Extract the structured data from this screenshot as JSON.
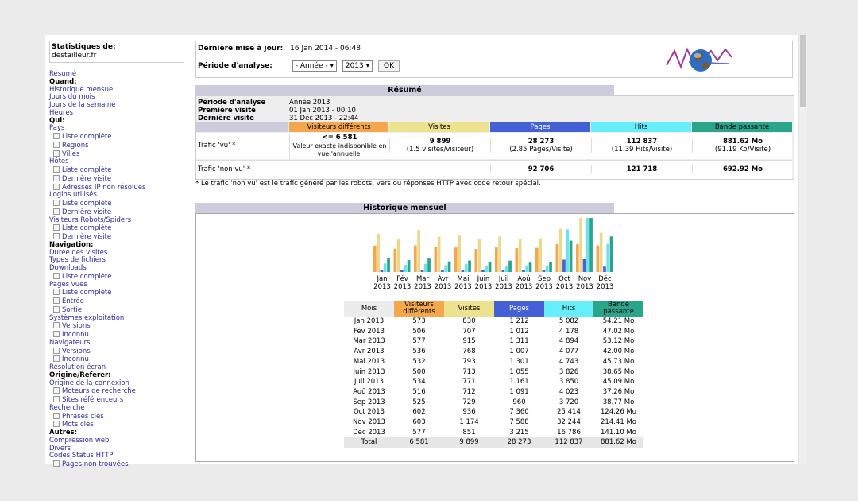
{
  "sidebar": {
    "stat_title": "Statistiques de:",
    "site": "destailleur.fr",
    "items": [
      {
        "t": "link",
        "label": "Résumé"
      },
      {
        "t": "head",
        "label": "Quand:"
      },
      {
        "t": "link",
        "label": "Historique mensuel"
      },
      {
        "t": "link",
        "label": "Jours du mois"
      },
      {
        "t": "link",
        "label": "Jours de la semaine"
      },
      {
        "t": "link",
        "label": "Heures"
      },
      {
        "t": "head",
        "label": "Qui:"
      },
      {
        "t": "link",
        "label": "Pays"
      },
      {
        "t": "sub",
        "label": "Liste complète"
      },
      {
        "t": "sub",
        "label": "Regions"
      },
      {
        "t": "sub",
        "label": "Villes"
      },
      {
        "t": "link",
        "label": "Hôtes"
      },
      {
        "t": "sub",
        "label": "Liste complète"
      },
      {
        "t": "sub",
        "label": "Dernière visite"
      },
      {
        "t": "sub",
        "label": "Adresses IP non résolues"
      },
      {
        "t": "link",
        "label": "Logins utilisés"
      },
      {
        "t": "sub",
        "label": "Liste complète"
      },
      {
        "t": "sub",
        "label": "Dernière visite"
      },
      {
        "t": "link",
        "label": "Visiteurs Robots/Spiders"
      },
      {
        "t": "sub",
        "label": "Liste complète"
      },
      {
        "t": "sub",
        "label": "Dernière visite"
      },
      {
        "t": "head",
        "label": "Navigation:"
      },
      {
        "t": "link",
        "label": "Durée des visites"
      },
      {
        "t": "link",
        "label": "Types de fichiers"
      },
      {
        "t": "link",
        "label": "Downloads"
      },
      {
        "t": "sub",
        "label": "Liste complète"
      },
      {
        "t": "link",
        "label": "Pages vues"
      },
      {
        "t": "sub",
        "label": "Liste complète"
      },
      {
        "t": "sub",
        "label": "Entrée"
      },
      {
        "t": "sub",
        "label": "Sortie"
      },
      {
        "t": "link",
        "label": "Systèmes exploitation"
      },
      {
        "t": "sub",
        "label": "Versions"
      },
      {
        "t": "sub",
        "label": "Inconnu"
      },
      {
        "t": "link",
        "label": "Navigateurs"
      },
      {
        "t": "sub",
        "label": "Versions"
      },
      {
        "t": "sub",
        "label": "Inconnu"
      },
      {
        "t": "link",
        "label": "Résolution écran"
      },
      {
        "t": "head",
        "label": "Origine/Referer:"
      },
      {
        "t": "link",
        "label": "Origine de la connexion"
      },
      {
        "t": "sub",
        "label": "Moteurs de recherche"
      },
      {
        "t": "sub",
        "label": "Sites référenceurs"
      },
      {
        "t": "link",
        "label": "Recherche"
      },
      {
        "t": "sub",
        "label": "Phrases clés"
      },
      {
        "t": "sub",
        "label": "Mots clés"
      },
      {
        "t": "head",
        "label": "Autres:"
      },
      {
        "t": "link",
        "label": "Compression web"
      },
      {
        "t": "link",
        "label": "Divers"
      },
      {
        "t": "link",
        "label": "Codes Status HTTP"
      },
      {
        "t": "sub",
        "label": "Pages non trouvées"
      }
    ]
  },
  "header": {
    "last_update_label": "Dernière mise à jour:",
    "last_update_value": "16 Jan 2014 - 06:48",
    "period_label": "Période d'analyse:",
    "period_option": "- Année -",
    "year_option": "2013",
    "ok_label": "OK"
  },
  "resume": {
    "title": "Résumé",
    "period_label": "Période d'analyse",
    "period_value": "Année 2013",
    "first_label": "Première visite",
    "first_value": "01 Jan 2013 - 00:10",
    "last_label": "Dernière visite",
    "last_value": "31 Déc 2013 - 22:44",
    "cols": [
      "Visiteurs différents",
      "Visites",
      "Pages",
      "Hits",
      "Bande passante"
    ],
    "vu_label": "Trafic 'vu' *",
    "vu_visitors": "<= 6 581",
    "vu_visitors_note": "Valeur exacte indisponible en vue 'annuelle'",
    "vu_visits": "9 899",
    "vu_visits_note": "(1.5 visites/visiteur)",
    "vu_pages": "28 273",
    "vu_pages_note": "(2.85 Pages/Visite)",
    "vu_hits": "112 837",
    "vu_hits_note": "(11.39 Hits/Visite)",
    "vu_bw": "881.62 Mo",
    "vu_bw_note": "(91.19 Ko/Visite)",
    "nonvu_label": "Trafic 'non vu' *",
    "nonvu_pages": "92 706",
    "nonvu_hits": "121 718",
    "nonvu_bw": "692.92 Mo",
    "note": "* Le trafic 'non vu' est le trafic généré par les robots, vers ou réponses HTTP avec code retour spécial."
  },
  "historique": {
    "title": "Historique mensuel",
    "headers": [
      "Mois",
      "Visiteurs différents",
      "Visites",
      "Pages",
      "Hits",
      "Bande passante"
    ],
    "rows": [
      [
        "Jan 2013",
        "573",
        "830",
        "1 212",
        "5 082",
        "54.21 Mo"
      ],
      [
        "Fév 2013",
        "506",
        "707",
        "1 012",
        "4 178",
        "47.02 Mo"
      ],
      [
        "Mar 2013",
        "577",
        "915",
        "1 311",
        "4 894",
        "53.12 Mo"
      ],
      [
        "Avr 2013",
        "536",
        "768",
        "1 007",
        "4 077",
        "42.00 Mo"
      ],
      [
        "Mai 2013",
        "532",
        "793",
        "1 301",
        "4 743",
        "45.73 Mo"
      ],
      [
        "Juin 2013",
        "500",
        "713",
        "1 055",
        "3 826",
        "38.65 Mo"
      ],
      [
        "Juil 2013",
        "534",
        "771",
        "1 161",
        "3 850",
        "45.09 Mo"
      ],
      [
        "Aoû 2013",
        "516",
        "712",
        "1 091",
        "4 023",
        "37.26 Mo"
      ],
      [
        "Sep 2013",
        "525",
        "729",
        "960",
        "3 720",
        "38.77 Mo"
      ],
      [
        "Oct 2013",
        "602",
        "936",
        "7 360",
        "25 414",
        "124.26 Mo"
      ],
      [
        "Nov 2013",
        "603",
        "1 174",
        "7 588",
        "32 244",
        "214.41 Mo"
      ],
      [
        "Déc 2013",
        "577",
        "851",
        "3 215",
        "16 786",
        "141.10 Mo"
      ]
    ],
    "total": [
      "Total",
      "6 581",
      "9 899",
      "28 273",
      "112 837",
      "881.62 Mo"
    ]
  },
  "chart_data": {
    "type": "bar",
    "categories": [
      "Jan",
      "Fév",
      "Mar",
      "Avr",
      "Mai",
      "Juin",
      "Juil",
      "Aoû",
      "Sep",
      "Oct",
      "Nov",
      "Déc"
    ],
    "year_label": "2013",
    "series": [
      {
        "name": "Visiteurs différents",
        "color": "#f4a74b",
        "values": [
          573,
          506,
          577,
          536,
          532,
          500,
          534,
          516,
          525,
          602,
          603,
          577
        ]
      },
      {
        "name": "Visites",
        "color": "#ead98c",
        "values": [
          830,
          707,
          915,
          768,
          793,
          713,
          771,
          712,
          729,
          936,
          1174,
          851
        ]
      },
      {
        "name": "Pages",
        "color": "#4763d2",
        "values": [
          1212,
          1012,
          1311,
          1007,
          1301,
          1055,
          1161,
          1091,
          960,
          7360,
          7588,
          3215
        ]
      },
      {
        "name": "Hits",
        "color": "#66e4f2",
        "values": [
          5082,
          4178,
          4894,
          4077,
          4743,
          3826,
          3850,
          4023,
          3720,
          25414,
          32244,
          16786
        ]
      },
      {
        "name": "Bande passante",
        "color": "#2aa58b",
        "values": [
          54.21,
          47.02,
          53.12,
          42.0,
          45.73,
          38.65,
          45.09,
          37.26,
          38.77,
          124.26,
          214.41,
          141.1
        ]
      }
    ]
  },
  "colors": {
    "visitors": "#f4a74b",
    "visits": "#ede28d",
    "pages": "#4460d6",
    "hits": "#66eefa",
    "bandwidth": "#2aa58b",
    "section_title": "#ccccdd"
  }
}
